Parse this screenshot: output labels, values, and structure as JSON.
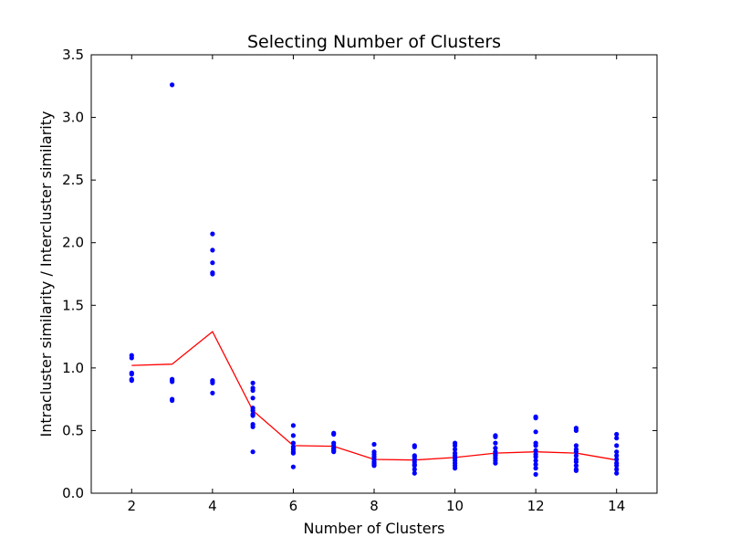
{
  "chart_data": {
    "type": "scatter",
    "title": "Selecting Number of Clusters",
    "xlabel": "Number of Clusters",
    "ylabel": "Intracluster similarity / Intercluster similarity",
    "xlim": [
      1,
      15
    ],
    "ylim": [
      0.0,
      3.5
    ],
    "xticks": [
      2,
      4,
      6,
      8,
      10,
      12,
      14
    ],
    "yticks": [
      0.0,
      0.5,
      1.0,
      1.5,
      2.0,
      2.5,
      3.0,
      3.5
    ],
    "xtick_labels": [
      "2",
      "4",
      "6",
      "8",
      "10",
      "12",
      "14"
    ],
    "ytick_labels": [
      "0.0",
      "0.5",
      "1.0",
      "1.5",
      "2.0",
      "2.5",
      "3.0",
      "3.5"
    ],
    "grid": false,
    "series": [
      {
        "kind": "scatter",
        "color": "#0000ff",
        "points": [
          {
            "x": 2,
            "y": 1.1
          },
          {
            "x": 2,
            "y": 1.08
          },
          {
            "x": 2,
            "y": 0.96
          },
          {
            "x": 2,
            "y": 0.95
          },
          {
            "x": 2,
            "y": 0.91
          },
          {
            "x": 2,
            "y": 0.9
          },
          {
            "x": 3,
            "y": 3.26
          },
          {
            "x": 3,
            "y": 0.91
          },
          {
            "x": 3,
            "y": 0.9
          },
          {
            "x": 3,
            "y": 0.89
          },
          {
            "x": 3,
            "y": 0.75
          },
          {
            "x": 3,
            "y": 0.74
          },
          {
            "x": 4,
            "y": 2.07
          },
          {
            "x": 4,
            "y": 1.94
          },
          {
            "x": 4,
            "y": 1.84
          },
          {
            "x": 4,
            "y": 1.76
          },
          {
            "x": 4,
            "y": 1.75
          },
          {
            "x": 4,
            "y": 0.9
          },
          {
            "x": 4,
            "y": 0.89
          },
          {
            "x": 4,
            "y": 0.88
          },
          {
            "x": 4,
            "y": 0.8
          },
          {
            "x": 5,
            "y": 0.88
          },
          {
            "x": 5,
            "y": 0.84
          },
          {
            "x": 5,
            "y": 0.82
          },
          {
            "x": 5,
            "y": 0.76
          },
          {
            "x": 5,
            "y": 0.68
          },
          {
            "x": 5,
            "y": 0.66
          },
          {
            "x": 5,
            "y": 0.63
          },
          {
            "x": 5,
            "y": 0.62
          },
          {
            "x": 5,
            "y": 0.55
          },
          {
            "x": 5,
            "y": 0.53
          },
          {
            "x": 5,
            "y": 0.33
          },
          {
            "x": 6,
            "y": 0.54
          },
          {
            "x": 6,
            "y": 0.46
          },
          {
            "x": 6,
            "y": 0.4
          },
          {
            "x": 6,
            "y": 0.37
          },
          {
            "x": 6,
            "y": 0.35
          },
          {
            "x": 6,
            "y": 0.33
          },
          {
            "x": 6,
            "y": 0.32
          },
          {
            "x": 6,
            "y": 0.21
          },
          {
            "x": 7,
            "y": 0.48
          },
          {
            "x": 7,
            "y": 0.47
          },
          {
            "x": 7,
            "y": 0.4
          },
          {
            "x": 7,
            "y": 0.38
          },
          {
            "x": 7,
            "y": 0.36
          },
          {
            "x": 7,
            "y": 0.35
          },
          {
            "x": 7,
            "y": 0.34
          },
          {
            "x": 7,
            "y": 0.33
          },
          {
            "x": 8,
            "y": 0.39
          },
          {
            "x": 8,
            "y": 0.33
          },
          {
            "x": 8,
            "y": 0.31
          },
          {
            "x": 8,
            "y": 0.29
          },
          {
            "x": 8,
            "y": 0.27
          },
          {
            "x": 8,
            "y": 0.25
          },
          {
            "x": 8,
            "y": 0.24
          },
          {
            "x": 8,
            "y": 0.23
          },
          {
            "x": 8,
            "y": 0.22
          },
          {
            "x": 9,
            "y": 0.38
          },
          {
            "x": 9,
            "y": 0.37
          },
          {
            "x": 9,
            "y": 0.3
          },
          {
            "x": 9,
            "y": 0.29
          },
          {
            "x": 9,
            "y": 0.27
          },
          {
            "x": 9,
            "y": 0.25
          },
          {
            "x": 9,
            "y": 0.23
          },
          {
            "x": 9,
            "y": 0.22
          },
          {
            "x": 9,
            "y": 0.19
          },
          {
            "x": 9,
            "y": 0.16
          },
          {
            "x": 10,
            "y": 0.4
          },
          {
            "x": 10,
            "y": 0.38
          },
          {
            "x": 10,
            "y": 0.35
          },
          {
            "x": 10,
            "y": 0.32
          },
          {
            "x": 10,
            "y": 0.3
          },
          {
            "x": 10,
            "y": 0.28
          },
          {
            "x": 10,
            "y": 0.26
          },
          {
            "x": 10,
            "y": 0.24
          },
          {
            "x": 10,
            "y": 0.22
          },
          {
            "x": 10,
            "y": 0.2
          },
          {
            "x": 11,
            "y": 0.46
          },
          {
            "x": 11,
            "y": 0.45
          },
          {
            "x": 11,
            "y": 0.4
          },
          {
            "x": 11,
            "y": 0.36
          },
          {
            "x": 11,
            "y": 0.33
          },
          {
            "x": 11,
            "y": 0.31
          },
          {
            "x": 11,
            "y": 0.3
          },
          {
            "x": 11,
            "y": 0.28
          },
          {
            "x": 11,
            "y": 0.26
          },
          {
            "x": 11,
            "y": 0.24
          },
          {
            "x": 12,
            "y": 0.61
          },
          {
            "x": 12,
            "y": 0.6
          },
          {
            "x": 12,
            "y": 0.49
          },
          {
            "x": 12,
            "y": 0.4
          },
          {
            "x": 12,
            "y": 0.38
          },
          {
            "x": 12,
            "y": 0.34
          },
          {
            "x": 12,
            "y": 0.31
          },
          {
            "x": 12,
            "y": 0.29
          },
          {
            "x": 12,
            "y": 0.26
          },
          {
            "x": 12,
            "y": 0.23
          },
          {
            "x": 12,
            "y": 0.2
          },
          {
            "x": 12,
            "y": 0.15
          },
          {
            "x": 13,
            "y": 0.52
          },
          {
            "x": 13,
            "y": 0.5
          },
          {
            "x": 13,
            "y": 0.38
          },
          {
            "x": 13,
            "y": 0.35
          },
          {
            "x": 13,
            "y": 0.33
          },
          {
            "x": 13,
            "y": 0.3
          },
          {
            "x": 13,
            "y": 0.27
          },
          {
            "x": 13,
            "y": 0.25
          },
          {
            "x": 13,
            "y": 0.22
          },
          {
            "x": 13,
            "y": 0.19
          },
          {
            "x": 13,
            "y": 0.18
          },
          {
            "x": 14,
            "y": 0.47
          },
          {
            "x": 14,
            "y": 0.44
          },
          {
            "x": 14,
            "y": 0.38
          },
          {
            "x": 14,
            "y": 0.33
          },
          {
            "x": 14,
            "y": 0.3
          },
          {
            "x": 14,
            "y": 0.27
          },
          {
            "x": 14,
            "y": 0.24
          },
          {
            "x": 14,
            "y": 0.22
          },
          {
            "x": 14,
            "y": 0.19
          },
          {
            "x": 14,
            "y": 0.16
          }
        ]
      },
      {
        "kind": "line",
        "color": "#ff0000",
        "x": [
          2,
          3,
          4,
          5,
          6,
          7,
          8,
          9,
          10,
          11,
          12,
          13,
          14
        ],
        "y": [
          1.02,
          1.03,
          1.29,
          0.66,
          0.38,
          0.375,
          0.27,
          0.265,
          0.285,
          0.32,
          0.33,
          0.32,
          0.265
        ]
      }
    ]
  }
}
